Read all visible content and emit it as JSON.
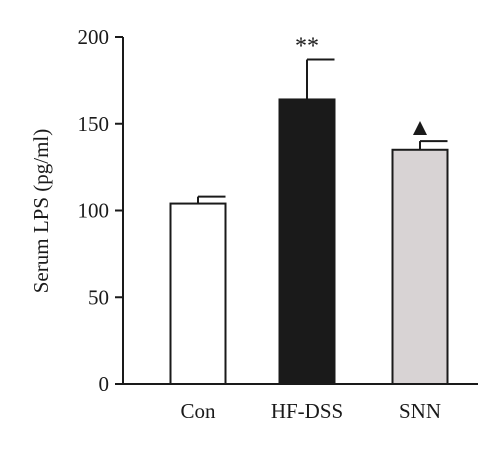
{
  "chart_data": {
    "type": "bar",
    "categories": [
      "Con",
      "HF-DSS",
      "SNN"
    ],
    "values": [
      104,
      164,
      135
    ],
    "errors": [
      4,
      23,
      5
    ],
    "annotations": [
      "",
      "**",
      "▲"
    ],
    "ylabel": "Serum LPS (pg/ml)",
    "xlabel": "",
    "ylim": [
      0,
      200
    ],
    "yticks": [
      0,
      50,
      100,
      150,
      200
    ],
    "bar_colors": [
      "#ffffff",
      "#1a1a1a",
      "#d8d3d4"
    ],
    "edge_color": "#1a1a1a",
    "grid": false
  }
}
